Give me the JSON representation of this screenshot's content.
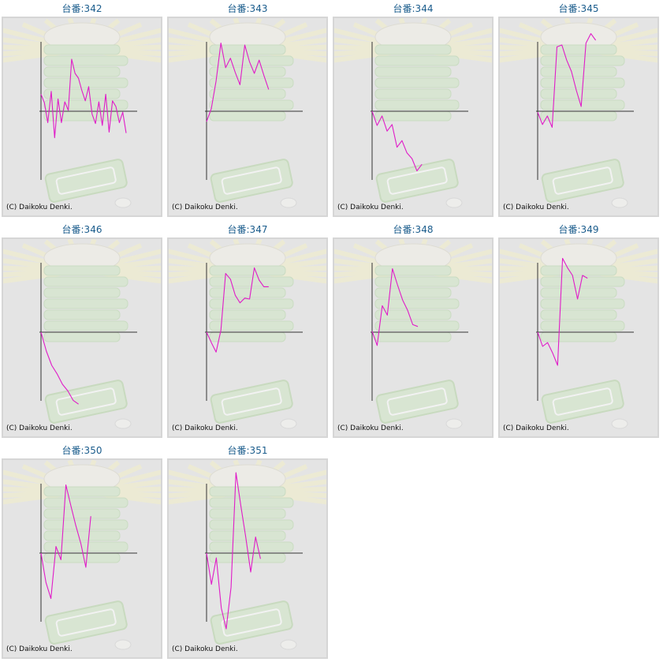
{
  "copyright": "(C) Daikoku Denki.",
  "line_color": "#e01cc8",
  "title_color": "#1a5c8c",
  "axis_color": "#333333",
  "chart_data": [
    {
      "type": "line",
      "title": "台番:342",
      "values": [
        0.18,
        0.09,
        -0.12,
        0.21,
        -0.28,
        0.13,
        -0.12,
        0.1,
        0.01,
        0.55,
        0.4,
        0.35,
        0.22,
        0.11,
        0.26,
        -0.03,
        -0.13,
        0.1,
        -0.15,
        0.18,
        -0.22,
        0.11,
        0.05,
        -0.12,
        -0.01,
        -0.23
      ]
    },
    {
      "type": "line",
      "title": "台番:343",
      "values": [
        -0.11,
        0.03,
        0.32,
        0.72,
        0.46,
        0.56,
        0.41,
        0.28,
        0.7,
        0.52,
        0.4,
        0.54,
        0.38,
        0.23
      ]
    },
    {
      "type": "line",
      "title": "台番:344",
      "values": [
        0.0,
        -0.15,
        -0.05,
        -0.21,
        -0.14,
        -0.38,
        -0.31,
        -0.44,
        -0.5,
        -0.63,
        -0.56
      ]
    },
    {
      "type": "line",
      "title": "台番:345",
      "values": [
        -0.01,
        -0.14,
        -0.05,
        -0.17,
        0.68,
        0.7,
        0.54,
        0.42,
        0.22,
        0.05,
        0.72,
        0.82,
        0.75
      ]
    },
    {
      "type": "line",
      "title": "台番:346",
      "values": [
        0.0,
        -0.2,
        -0.35,
        -0.44,
        -0.55,
        -0.62,
        -0.72,
        -0.76
      ]
    },
    {
      "type": "line",
      "title": "台番:347",
      "values": [
        0.0,
        -0.11,
        -0.21,
        0.02,
        0.62,
        0.56,
        0.39,
        0.31,
        0.36,
        0.35,
        0.68,
        0.55,
        0.48,
        0.48
      ]
    },
    {
      "type": "line",
      "title": "台番:348",
      "values": [
        0.01,
        -0.14,
        0.28,
        0.18,
        0.67,
        0.5,
        0.34,
        0.23,
        0.08,
        0.06
      ]
    },
    {
      "type": "line",
      "title": "台番:349",
      "values": [
        0.0,
        -0.15,
        -0.11,
        -0.22,
        -0.35,
        0.78,
        0.68,
        0.6,
        0.35,
        0.6,
        0.57
      ]
    },
    {
      "type": "line",
      "title": "台番:350",
      "values": [
        0.0,
        -0.31,
        -0.48,
        0.07,
        -0.07,
        0.72,
        0.5,
        0.29,
        0.1,
        -0.15,
        0.39
      ]
    },
    {
      "type": "line",
      "title": "台番:351",
      "values": [
        0.0,
        -0.33,
        -0.05,
        -0.58,
        -0.8,
        -0.36,
        0.85,
        0.5,
        0.17,
        -0.2,
        0.17,
        -0.06
      ]
    }
  ]
}
